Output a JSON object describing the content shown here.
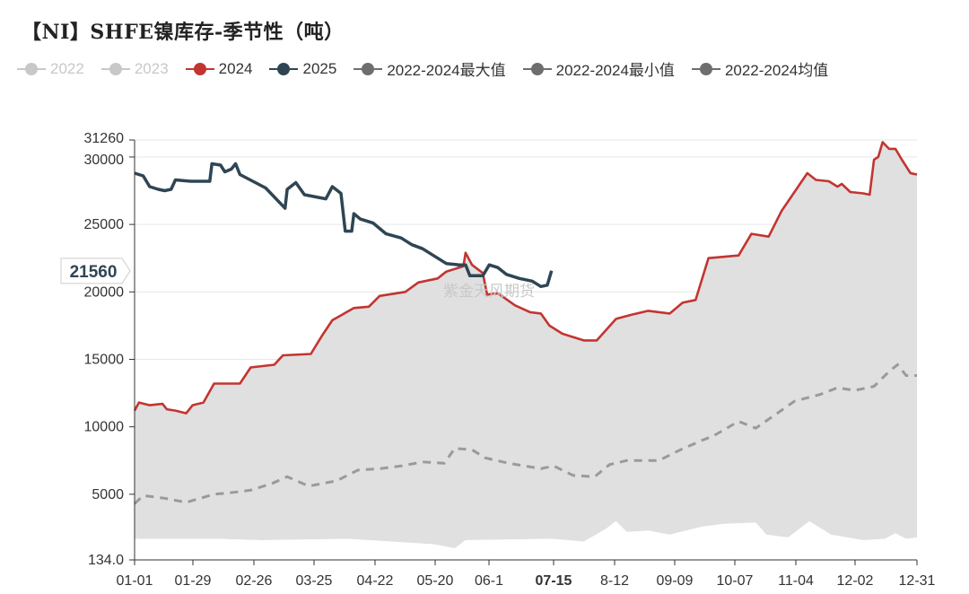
{
  "title": "【NI】SHFE镍库存-季节性（吨）",
  "watermark": "紫金天风期货",
  "crosshair": {
    "y_value_label": "21560",
    "x_label": "07-15"
  },
  "legend": [
    {
      "name": "2022",
      "color": "#c8c8c8",
      "style": "line",
      "dim": true
    },
    {
      "name": "2023",
      "color": "#c8c8c8",
      "style": "line",
      "dim": true
    },
    {
      "name": "2024",
      "color": "#c23531",
      "style": "line",
      "dim": false
    },
    {
      "name": "2025",
      "color": "#2f4554",
      "style": "line",
      "dim": false
    },
    {
      "name": "2022-2024最大值",
      "color": "#6e6e6e",
      "style": "line",
      "dim": false
    },
    {
      "name": "2022-2024最小值",
      "color": "#6e6e6e",
      "style": "line",
      "dim": false
    },
    {
      "name": "2022-2024均值",
      "color": "#6e6e6e",
      "style": "line",
      "dim": false
    }
  ],
  "chart_data": {
    "type": "line",
    "title": "【NI】SHFE镍库存-季节性（吨）",
    "x_ticks": [
      "01-01",
      "01-29",
      "02-26",
      "03-25",
      "04-22",
      "05-20",
      "06-1",
      "07-15",
      "8-12",
      "09-09",
      "10-07",
      "11-04",
      "12-02",
      "12-31"
    ],
    "y_ticks": [
      134.0,
      5000,
      10000,
      15000,
      20000,
      25000,
      30000,
      31260
    ],
    "ylim": [
      134.0,
      31260
    ],
    "x_domain_days": [
      1,
      365
    ],
    "grid": true,
    "legend_position": "top",
    "series": [
      {
        "name": "2024",
        "color": "#c23531",
        "kind": "line",
        "points": [
          [
            1,
            11200
          ],
          [
            3,
            11800
          ],
          [
            8,
            11600
          ],
          [
            14,
            11700
          ],
          [
            16,
            11300
          ],
          [
            20,
            11200
          ],
          [
            25,
            11000
          ],
          [
            28,
            11600
          ],
          [
            33,
            11800
          ],
          [
            38,
            13200
          ],
          [
            50,
            13200
          ],
          [
            55,
            14400
          ],
          [
            66,
            14600
          ],
          [
            70,
            15300
          ],
          [
            83,
            15400
          ],
          [
            88,
            16700
          ],
          [
            93,
            17900
          ],
          [
            103,
            18800
          ],
          [
            110,
            18900
          ],
          [
            115,
            19700
          ],
          [
            127,
            20000
          ],
          [
            133,
            20700
          ],
          [
            142,
            21000
          ],
          [
            146,
            21500
          ],
          [
            154,
            21900
          ],
          [
            155,
            22900
          ],
          [
            158,
            22000
          ],
          [
            163,
            21400
          ],
          [
            165,
            19800
          ],
          [
            170,
            19900
          ],
          [
            178,
            19000
          ],
          [
            185,
            18500
          ],
          [
            190,
            18400
          ],
          [
            194,
            17500
          ],
          [
            200,
            16900
          ],
          [
            210,
            16400
          ],
          [
            216,
            16400
          ],
          [
            225,
            18000
          ],
          [
            232,
            18300
          ],
          [
            240,
            18600
          ],
          [
            250,
            18400
          ],
          [
            256,
            19200
          ],
          [
            262,
            19400
          ],
          [
            268,
            22500
          ],
          [
            282,
            22700
          ],
          [
            288,
            24300
          ],
          [
            296,
            24100
          ],
          [
            302,
            26000
          ],
          [
            308,
            27400
          ],
          [
            314,
            28800
          ],
          [
            318,
            28300
          ],
          [
            324,
            28200
          ],
          [
            328,
            27800
          ],
          [
            330,
            28000
          ],
          [
            334,
            27400
          ],
          [
            340,
            27300
          ],
          [
            343,
            27200
          ],
          [
            345,
            29800
          ],
          [
            347,
            30000
          ],
          [
            349,
            31100
          ],
          [
            352,
            30600
          ],
          [
            355,
            30600
          ],
          [
            358,
            29800
          ],
          [
            362,
            28800
          ],
          [
            365,
            28700
          ]
        ]
      },
      {
        "name": "2025",
        "color": "#2f4554",
        "kind": "line",
        "points": [
          [
            1,
            28800
          ],
          [
            5,
            28600
          ],
          [
            8,
            27800
          ],
          [
            12,
            27600
          ],
          [
            15,
            27500
          ],
          [
            18,
            27600
          ],
          [
            20,
            28300
          ],
          [
            27,
            28200
          ],
          [
            36,
            28200
          ],
          [
            37,
            29500
          ],
          [
            41,
            29400
          ],
          [
            43,
            28900
          ],
          [
            46,
            29100
          ],
          [
            48,
            29500
          ],
          [
            50,
            28700
          ],
          [
            56,
            28200
          ],
          [
            62,
            27700
          ],
          [
            65,
            27200
          ],
          [
            71,
            26200
          ],
          [
            72,
            27600
          ],
          [
            76,
            28100
          ],
          [
            80,
            27200
          ],
          [
            90,
            26900
          ],
          [
            93,
            27800
          ],
          [
            97,
            27300
          ],
          [
            99,
            24500
          ],
          [
            102,
            24500
          ],
          [
            103,
            25800
          ],
          [
            106,
            25400
          ],
          [
            112,
            25100
          ],
          [
            115,
            24700
          ],
          [
            118,
            24300
          ],
          [
            125,
            24000
          ],
          [
            130,
            23500
          ],
          [
            135,
            23200
          ],
          [
            140,
            22700
          ],
          [
            146,
            22100
          ],
          [
            152,
            22000
          ],
          [
            155,
            22000
          ],
          [
            157,
            21200
          ],
          [
            163,
            21200
          ],
          [
            166,
            22000
          ],
          [
            170,
            21800
          ],
          [
            174,
            21300
          ],
          [
            180,
            21000
          ],
          [
            186,
            20800
          ],
          [
            190,
            20400
          ],
          [
            193,
            20500
          ],
          [
            195,
            21560
          ]
        ]
      },
      {
        "name": "2022-2024均值",
        "color": "#9a9a9a",
        "kind": "dashed",
        "points": [
          [
            1,
            4300
          ],
          [
            5,
            4900
          ],
          [
            15,
            4700
          ],
          [
            25,
            4400
          ],
          [
            38,
            5000
          ],
          [
            45,
            5100
          ],
          [
            55,
            5300
          ],
          [
            65,
            5800
          ],
          [
            72,
            6300
          ],
          [
            82,
            5600
          ],
          [
            95,
            6000
          ],
          [
            105,
            6800
          ],
          [
            115,
            6900
          ],
          [
            125,
            7100
          ],
          [
            135,
            7400
          ],
          [
            145,
            7300
          ],
          [
            150,
            8400
          ],
          [
            158,
            8300
          ],
          [
            164,
            7700
          ],
          [
            175,
            7300
          ],
          [
            190,
            6900
          ],
          [
            196,
            7100
          ],
          [
            205,
            6400
          ],
          [
            215,
            6300
          ],
          [
            222,
            7200
          ],
          [
            230,
            7500
          ],
          [
            245,
            7500
          ],
          [
            255,
            8300
          ],
          [
            265,
            9000
          ],
          [
            270,
            9300
          ],
          [
            282,
            10400
          ],
          [
            290,
            9900
          ],
          [
            300,
            11000
          ],
          [
            308,
            11900
          ],
          [
            320,
            12400
          ],
          [
            328,
            12900
          ],
          [
            336,
            12700
          ],
          [
            345,
            13000
          ],
          [
            352,
            14100
          ],
          [
            356,
            14600
          ],
          [
            360,
            13800
          ],
          [
            365,
            13800
          ]
        ]
      },
      {
        "name": "2022-2024最大值",
        "color": "#e0e0e0",
        "kind": "band-top",
        "points": [
          [
            1,
            11200
          ],
          [
            3,
            11800
          ],
          [
            8,
            11600
          ],
          [
            14,
            11700
          ],
          [
            16,
            11300
          ],
          [
            20,
            11200
          ],
          [
            25,
            11000
          ],
          [
            28,
            11600
          ],
          [
            33,
            11800
          ],
          [
            38,
            13200
          ],
          [
            50,
            13200
          ],
          [
            55,
            14400
          ],
          [
            66,
            14600
          ],
          [
            70,
            15300
          ],
          [
            83,
            15400
          ],
          [
            88,
            16700
          ],
          [
            93,
            17900
          ],
          [
            103,
            18800
          ],
          [
            110,
            18900
          ],
          [
            115,
            19700
          ],
          [
            127,
            20000
          ],
          [
            133,
            20700
          ],
          [
            142,
            21000
          ],
          [
            146,
            21500
          ],
          [
            154,
            21900
          ],
          [
            155,
            22900
          ],
          [
            158,
            22000
          ],
          [
            163,
            21400
          ],
          [
            165,
            19800
          ],
          [
            170,
            19900
          ],
          [
            178,
            19000
          ],
          [
            185,
            18500
          ],
          [
            190,
            18400
          ],
          [
            194,
            17500
          ],
          [
            200,
            16900
          ],
          [
            210,
            16400
          ],
          [
            216,
            16400
          ],
          [
            225,
            18000
          ],
          [
            232,
            18300
          ],
          [
            240,
            18600
          ],
          [
            250,
            18400
          ],
          [
            256,
            19200
          ],
          [
            262,
            19400
          ],
          [
            268,
            22500
          ],
          [
            282,
            22700
          ],
          [
            288,
            24300
          ],
          [
            296,
            24100
          ],
          [
            302,
            26000
          ],
          [
            308,
            27400
          ],
          [
            314,
            28800
          ],
          [
            318,
            28300
          ],
          [
            324,
            28200
          ],
          [
            328,
            27800
          ],
          [
            330,
            28000
          ],
          [
            334,
            27400
          ],
          [
            340,
            27300
          ],
          [
            343,
            27200
          ],
          [
            345,
            29800
          ],
          [
            347,
            30000
          ],
          [
            349,
            31100
          ],
          [
            352,
            30600
          ],
          [
            355,
            30600
          ],
          [
            358,
            29800
          ],
          [
            362,
            28800
          ],
          [
            365,
            28700
          ]
        ]
      },
      {
        "name": "2022-2024最小值",
        "color": "#ffffff",
        "kind": "band-bottom",
        "points": [
          [
            1,
            1700
          ],
          [
            40,
            1700
          ],
          [
            60,
            1600
          ],
          [
            100,
            1700
          ],
          [
            140,
            1300
          ],
          [
            150,
            1000
          ],
          [
            155,
            1600
          ],
          [
            195,
            1700
          ],
          [
            210,
            1500
          ],
          [
            220,
            2400
          ],
          [
            225,
            3000
          ],
          [
            230,
            2200
          ],
          [
            240,
            2300
          ],
          [
            250,
            2000
          ],
          [
            265,
            2600
          ],
          [
            275,
            2800
          ],
          [
            290,
            2900
          ],
          [
            295,
            2000
          ],
          [
            305,
            1800
          ],
          [
            315,
            3000
          ],
          [
            325,
            2000
          ],
          [
            340,
            1600
          ],
          [
            350,
            1700
          ],
          [
            355,
            2100
          ],
          [
            360,
            1700
          ],
          [
            365,
            1800
          ]
        ]
      }
    ]
  }
}
